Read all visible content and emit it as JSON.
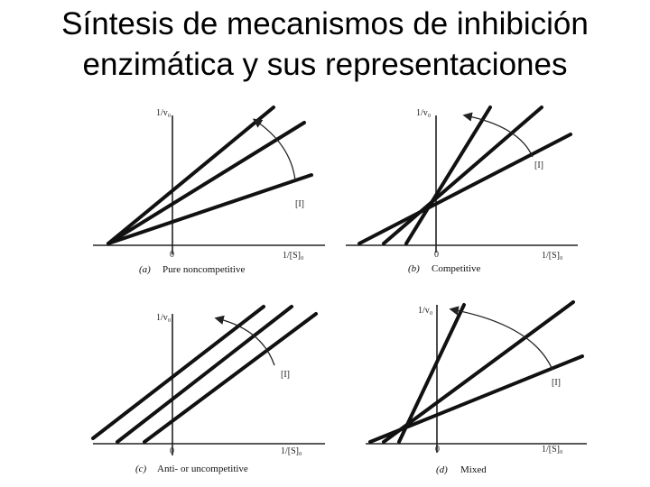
{
  "title": {
    "line1": "Síntesis de mecanismos de inhibición",
    "line2": "enzimática y sus representaciones"
  },
  "panels": [
    {
      "id": "a",
      "letter": "(a)",
      "caption": "Pure noncompetitive",
      "y_label": "1/v₀",
      "x_label": "1/[S]₀",
      "origin_label": "0",
      "inhibitor_label": "[I]"
    },
    {
      "id": "b",
      "letter": "(b)",
      "caption": "Competitive",
      "y_label": "1/v₀",
      "x_label": "1/[S]₀",
      "origin_label": "0",
      "inhibitor_label": "[I]"
    },
    {
      "id": "c",
      "letter": "(c)",
      "caption": "Anti- or uncompetitive",
      "y_label": "1/v₀",
      "x_label": "1/[S]₀",
      "origin_label": "0",
      "inhibitor_label": "[I]"
    },
    {
      "id": "d",
      "letter": "(d)",
      "caption": "Mixed",
      "y_label": "1/v₀",
      "x_label": "1/[S]₀",
      "origin_label": "0",
      "inhibitor_label": "[I]"
    }
  ]
}
